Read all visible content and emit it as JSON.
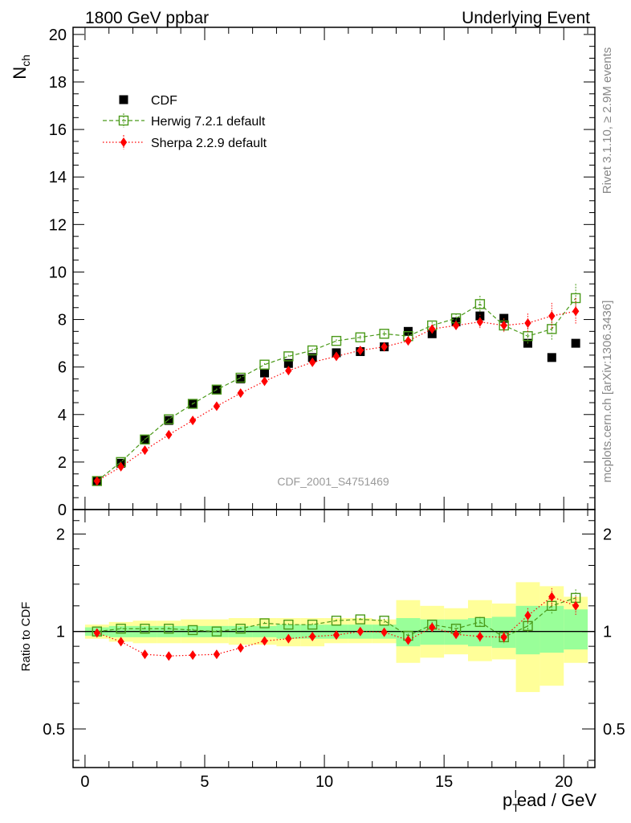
{
  "header": {
    "left": "1800 GeV ppbar",
    "right": "Underlying Event"
  },
  "side_labels": {
    "rivet": "Rivet 3.1.10, ≥ 2.9M events",
    "mcplots": "mcplots.cern.ch [arXiv:1306.3436]"
  },
  "watermark": "CDF_2001_S4751469",
  "colors": {
    "cdf": "#000000",
    "herwig": "#4b9a1a",
    "sherpa": "#ff0000",
    "band_yellow": "#ffff99",
    "band_green": "#99ff99"
  },
  "chart_data": [
    {
      "type": "scatter",
      "panel": "main",
      "ylabel": "N",
      "ylabel_sub": "ch",
      "ylim": [
        0,
        20.3
      ],
      "xlim": [
        -0.5,
        21.3
      ],
      "y_ticks": [
        0,
        2,
        4,
        6,
        8,
        10,
        12,
        14,
        16,
        18,
        20
      ],
      "legend_position": "top-left",
      "x": [
        0.5,
        1.5,
        2.5,
        3.5,
        4.5,
        5.5,
        6.5,
        7.5,
        8.5,
        9.5,
        10.5,
        11.5,
        12.5,
        13.5,
        14.5,
        15.5,
        16.5,
        17.5,
        18.5,
        19.5,
        20.5
      ],
      "series": [
        {
          "name": "CDF",
          "marker": "filled-square",
          "values": [
            1.2,
            1.95,
            2.95,
            3.75,
            4.45,
            5.05,
            5.5,
            5.75,
            6.15,
            6.4,
            6.6,
            6.65,
            6.85,
            7.5,
            7.4,
            7.9,
            8.15,
            8.05,
            7.0,
            6.4,
            7.0
          ]
        },
        {
          "name": "Herwig 7.2.1 default",
          "marker": "open-square",
          "line": "dashed",
          "values": [
            1.2,
            2.0,
            2.95,
            3.8,
            4.45,
            5.05,
            5.55,
            6.1,
            6.45,
            6.7,
            7.1,
            7.25,
            7.4,
            7.3,
            7.75,
            8.05,
            8.65,
            7.75,
            7.3,
            7.6,
            8.9
          ],
          "errors": [
            0.03,
            0.03,
            0.04,
            0.04,
            0.05,
            0.05,
            0.05,
            0.06,
            0.06,
            0.07,
            0.07,
            0.08,
            0.1,
            0.12,
            0.15,
            0.2,
            0.35,
            0.3,
            0.35,
            0.45,
            0.6
          ]
        },
        {
          "name": "Sherpa 2.2.9 default",
          "marker": "filled-diamond",
          "line": "dotted",
          "values": [
            1.2,
            1.8,
            2.5,
            3.15,
            3.75,
            4.35,
            4.9,
            5.4,
            5.85,
            6.2,
            6.45,
            6.7,
            6.85,
            7.1,
            7.6,
            7.75,
            7.9,
            7.75,
            7.85,
            8.15,
            8.35
          ],
          "errors": [
            0.03,
            0.03,
            0.04,
            0.04,
            0.05,
            0.05,
            0.05,
            0.06,
            0.06,
            0.07,
            0.07,
            0.08,
            0.1,
            0.12,
            0.15,
            0.2,
            0.3,
            0.3,
            0.4,
            0.55,
            0.55
          ]
        }
      ]
    },
    {
      "type": "scatter",
      "panel": "ratio",
      "ylabel": "Ratio to CDF",
      "xlabel": "p",
      "xlabel_sub": "T",
      "xlabel_sup": "l",
      "xlabel_rest": "ead / GeV",
      "xlim": [
        -0.5,
        21.3
      ],
      "ylim": [
        0.38,
        2.38
      ],
      "y_scale": "log",
      "y_ticks": [
        0.5,
        1,
        2
      ],
      "y_tick_labels": [
        "0.5",
        "1",
        "2"
      ],
      "x_ticks": [
        0,
        5,
        10,
        15,
        20
      ],
      "x_tick_labels": [
        "0",
        "5",
        "10",
        "15",
        "20"
      ],
      "bands": {
        "x_edges": [
          0,
          1,
          2,
          3,
          4,
          5,
          6,
          7,
          8,
          9,
          10,
          11,
          12,
          13,
          14,
          15,
          16,
          17,
          18,
          19,
          20,
          21
        ],
        "green_lo": [
          0.97,
          0.96,
          0.96,
          0.96,
          0.96,
          0.96,
          0.96,
          0.96,
          0.95,
          0.95,
          0.95,
          0.95,
          0.95,
          0.9,
          0.91,
          0.91,
          0.9,
          0.89,
          0.85,
          0.86,
          0.88
        ],
        "green_hi": [
          1.03,
          1.04,
          1.04,
          1.04,
          1.04,
          1.04,
          1.04,
          1.04,
          1.05,
          1.05,
          1.05,
          1.05,
          1.05,
          1.1,
          1.09,
          1.09,
          1.1,
          1.11,
          1.2,
          1.2,
          1.17
        ],
        "yellow_lo": [
          0.95,
          0.93,
          0.92,
          0.92,
          0.92,
          0.92,
          0.91,
          0.91,
          0.9,
          0.9,
          0.92,
          0.92,
          0.92,
          0.8,
          0.83,
          0.85,
          0.81,
          0.82,
          0.65,
          0.68,
          0.8
        ],
        "yellow_hi": [
          1.05,
          1.07,
          1.08,
          1.08,
          1.09,
          1.09,
          1.1,
          1.1,
          1.1,
          1.1,
          1.1,
          1.1,
          1.09,
          1.25,
          1.2,
          1.18,
          1.25,
          1.22,
          1.42,
          1.38,
          1.28
        ]
      },
      "series": [
        {
          "name": "Herwig 7.2.1 default",
          "marker": "open-square",
          "line": "dashed",
          "values": [
            1.0,
            1.02,
            1.02,
            1.02,
            1.01,
            1.0,
            1.02,
            1.06,
            1.05,
            1.05,
            1.08,
            1.09,
            1.08,
            0.97,
            1.05,
            1.02,
            1.07,
            0.96,
            1.04,
            1.2,
            1.27
          ],
          "errors": [
            0.01,
            0.01,
            0.01,
            0.01,
            0.01,
            0.01,
            0.01,
            0.01,
            0.01,
            0.01,
            0.01,
            0.01,
            0.015,
            0.015,
            0.02,
            0.025,
            0.04,
            0.04,
            0.05,
            0.07,
            0.08
          ]
        },
        {
          "name": "Sherpa 2.2.9 default",
          "marker": "filled-diamond",
          "line": "dotted",
          "values": [
            0.99,
            0.93,
            0.85,
            0.84,
            0.845,
            0.85,
            0.89,
            0.935,
            0.95,
            0.965,
            0.975,
            1.0,
            0.995,
            0.94,
            1.03,
            0.98,
            0.965,
            0.96,
            1.12,
            1.28,
            1.2
          ],
          "errors": [
            0.01,
            0.01,
            0.01,
            0.01,
            0.01,
            0.01,
            0.01,
            0.01,
            0.01,
            0.01,
            0.01,
            0.01,
            0.015,
            0.015,
            0.02,
            0.025,
            0.04,
            0.04,
            0.06,
            0.08,
            0.08
          ]
        }
      ]
    }
  ]
}
